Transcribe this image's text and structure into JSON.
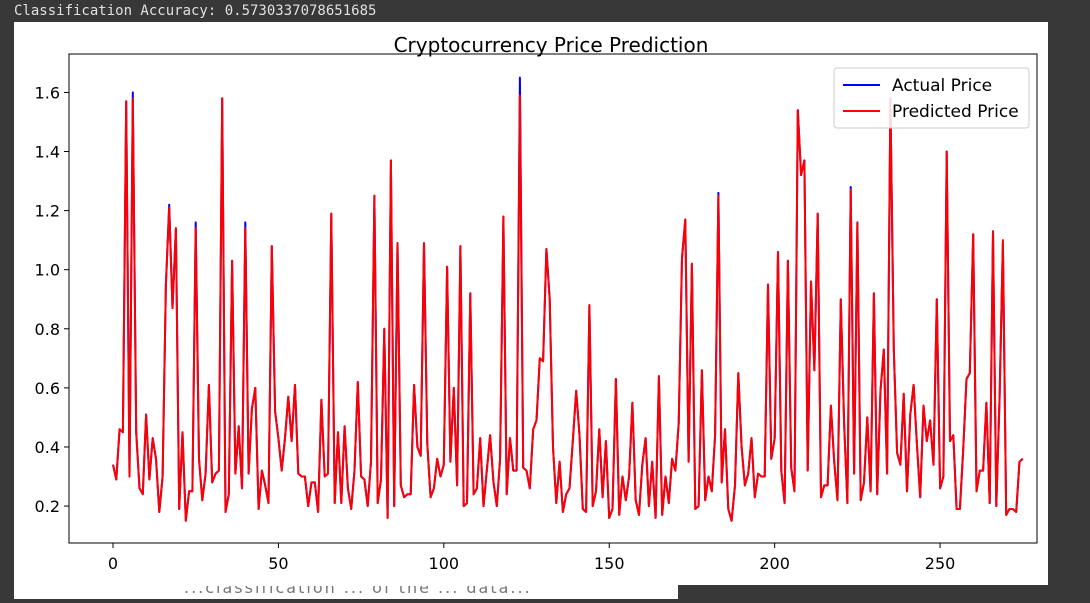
{
  "output": {
    "accuracy_text": "Classification Accuracy: 0.5730337078651685",
    "cut_off_text": "...classification ... of the ... data..."
  },
  "chart_data": {
    "type": "line",
    "title": "Cryptocurrency Price Prediction",
    "xlabel": "",
    "ylabel": "",
    "xlim": [
      -13.3,
      279.3
    ],
    "ylim": [
      0.075,
      1.73
    ],
    "xticks": [
      0,
      50,
      100,
      150,
      200,
      250
    ],
    "yticks": [
      0.2,
      0.4,
      0.6,
      0.8,
      1.0,
      1.2,
      1.4,
      1.6
    ],
    "xtick_labels": [
      "0",
      "50",
      "100",
      "150",
      "200",
      "250"
    ],
    "ytick_labels": [
      "0.2",
      "0.4",
      "0.6",
      "0.8",
      "1.0",
      "1.2",
      "1.4",
      "1.6"
    ],
    "grid": false,
    "legend": "top-right",
    "series": [
      {
        "name": "Actual Price",
        "color": "#0000ff",
        "x_start": 0,
        "values": [
          0.34,
          0.29,
          0.46,
          0.45,
          1.57,
          0.3,
          1.6,
          0.45,
          0.26,
          0.24,
          0.51,
          0.29,
          0.43,
          0.36,
          0.18,
          0.3,
          0.95,
          1.22,
          0.87,
          1.14,
          0.19,
          0.45,
          0.15,
          0.25,
          0.25,
          1.16,
          0.36,
          0.22,
          0.31,
          0.61,
          0.28,
          0.31,
          0.32,
          1.58,
          0.18,
          0.24,
          1.03,
          0.31,
          0.47,
          0.26,
          1.16,
          0.31,
          0.53,
          0.6,
          0.19,
          0.32,
          0.27,
          0.21,
          1.08,
          0.52,
          0.43,
          0.32,
          0.43,
          0.57,
          0.42,
          0.61,
          0.31,
          0.3,
          0.3,
          0.2,
          0.28,
          0.28,
          0.18,
          0.56,
          0.3,
          0.31,
          1.19,
          0.21,
          0.45,
          0.21,
          0.47,
          0.26,
          0.19,
          0.32,
          0.62,
          0.3,
          0.29,
          0.2,
          0.35,
          1.25,
          0.21,
          0.29,
          0.8,
          0.16,
          1.37,
          0.2,
          1.09,
          0.27,
          0.23,
          0.24,
          0.24,
          0.61,
          0.4,
          0.37,
          1.09,
          0.41,
          0.23,
          0.26,
          0.36,
          0.3,
          0.34,
          1.01,
          0.35,
          0.6,
          0.27,
          1.08,
          0.2,
          0.21,
          0.92,
          0.24,
          0.26,
          0.43,
          0.2,
          0.32,
          0.44,
          0.28,
          0.2,
          0.36,
          1.18,
          0.24,
          0.43,
          0.32,
          0.32,
          1.65,
          0.33,
          0.32,
          0.26,
          0.46,
          0.49,
          0.7,
          0.69,
          1.07,
          0.9,
          0.4,
          0.21,
          0.35,
          0.18,
          0.24,
          0.26,
          0.42,
          0.59,
          0.44,
          0.19,
          0.18,
          0.88,
          0.2,
          0.25,
          0.46,
          0.23,
          0.42,
          0.16,
          0.19,
          0.63,
          0.17,
          0.3,
          0.22,
          0.3,
          0.55,
          0.22,
          0.17,
          0.34,
          0.43,
          0.2,
          0.35,
          0.16,
          0.64,
          0.17,
          0.3,
          0.21,
          0.36,
          0.32,
          0.48,
          1.04,
          1.17,
          0.35,
          1.02,
          0.19,
          0.2,
          0.66,
          0.22,
          0.3,
          0.25,
          0.44,
          1.26,
          0.28,
          0.46,
          0.19,
          0.15,
          0.27,
          0.65,
          0.4,
          0.27,
          0.31,
          0.43,
          0.23,
          0.31,
          0.3,
          0.3,
          0.95,
          0.36,
          0.43,
          1.06,
          0.32,
          0.21,
          1.03,
          0.33,
          0.25,
          1.54,
          1.32,
          1.37,
          0.32,
          0.96,
          0.66,
          1.19,
          0.23,
          0.27,
          0.27,
          0.54,
          0.35,
          0.22,
          0.9,
          0.48,
          0.21,
          1.28,
          0.31,
          1.16,
          0.22,
          0.28,
          0.5,
          0.25,
          0.92,
          0.24,
          0.59,
          0.73,
          0.31,
          1.58,
          0.73,
          0.38,
          0.34,
          0.58,
          0.25,
          0.51,
          0.61,
          0.41,
          0.23,
          0.54,
          0.42,
          0.49,
          0.34,
          0.9,
          0.26,
          0.3,
          1.4,
          0.42,
          0.44,
          0.19,
          0.19,
          0.39,
          0.63,
          0.65,
          1.12,
          0.25,
          0.32,
          0.32,
          0.55,
          0.21,
          1.13,
          0.2,
          0.57,
          1.09,
          0.17,
          0.19,
          0.19,
          0.18,
          0.35,
          0.36
        ]
      },
      {
        "name": "Predicted Price",
        "color": "#ff0000",
        "x_start": 0,
        "values": [
          0.34,
          0.29,
          0.46,
          0.45,
          1.57,
          0.3,
          1.58,
          0.45,
          0.26,
          0.24,
          0.51,
          0.29,
          0.43,
          0.36,
          0.18,
          0.3,
          0.95,
          1.21,
          0.87,
          1.14,
          0.19,
          0.45,
          0.15,
          0.25,
          0.25,
          1.14,
          0.36,
          0.22,
          0.31,
          0.61,
          0.28,
          0.31,
          0.32,
          1.58,
          0.18,
          0.24,
          1.03,
          0.31,
          0.47,
          0.26,
          1.14,
          0.31,
          0.53,
          0.6,
          0.19,
          0.32,
          0.27,
          0.21,
          1.08,
          0.52,
          0.43,
          0.32,
          0.43,
          0.57,
          0.42,
          0.61,
          0.31,
          0.3,
          0.3,
          0.2,
          0.28,
          0.28,
          0.18,
          0.56,
          0.3,
          0.31,
          1.19,
          0.21,
          0.45,
          0.21,
          0.47,
          0.26,
          0.19,
          0.32,
          0.62,
          0.3,
          0.29,
          0.2,
          0.35,
          1.25,
          0.21,
          0.29,
          0.8,
          0.16,
          1.37,
          0.2,
          1.09,
          0.27,
          0.23,
          0.24,
          0.24,
          0.61,
          0.4,
          0.37,
          1.09,
          0.41,
          0.23,
          0.26,
          0.36,
          0.3,
          0.34,
          1.01,
          0.35,
          0.6,
          0.27,
          1.08,
          0.2,
          0.21,
          0.92,
          0.24,
          0.26,
          0.43,
          0.2,
          0.32,
          0.44,
          0.28,
          0.2,
          0.36,
          1.18,
          0.24,
          0.43,
          0.32,
          0.32,
          1.59,
          0.33,
          0.32,
          0.26,
          0.46,
          0.49,
          0.7,
          0.69,
          1.07,
          0.9,
          0.4,
          0.21,
          0.35,
          0.18,
          0.24,
          0.26,
          0.42,
          0.59,
          0.44,
          0.19,
          0.18,
          0.88,
          0.2,
          0.25,
          0.46,
          0.23,
          0.42,
          0.16,
          0.19,
          0.63,
          0.17,
          0.3,
          0.22,
          0.3,
          0.55,
          0.22,
          0.17,
          0.34,
          0.43,
          0.2,
          0.35,
          0.16,
          0.64,
          0.17,
          0.3,
          0.21,
          0.36,
          0.32,
          0.48,
          1.04,
          1.17,
          0.35,
          1.02,
          0.19,
          0.2,
          0.66,
          0.22,
          0.3,
          0.25,
          0.44,
          1.25,
          0.28,
          0.46,
          0.19,
          0.15,
          0.27,
          0.65,
          0.4,
          0.27,
          0.31,
          0.43,
          0.23,
          0.31,
          0.3,
          0.3,
          0.95,
          0.36,
          0.43,
          1.06,
          0.32,
          0.21,
          1.03,
          0.33,
          0.25,
          1.54,
          1.32,
          1.37,
          0.32,
          0.96,
          0.66,
          1.19,
          0.23,
          0.27,
          0.27,
          0.54,
          0.35,
          0.22,
          0.9,
          0.48,
          0.21,
          1.27,
          0.31,
          1.16,
          0.22,
          0.28,
          0.5,
          0.25,
          0.92,
          0.24,
          0.59,
          0.73,
          0.31,
          1.58,
          0.73,
          0.38,
          0.34,
          0.58,
          0.25,
          0.51,
          0.61,
          0.41,
          0.23,
          0.54,
          0.42,
          0.49,
          0.34,
          0.9,
          0.26,
          0.3,
          1.4,
          0.42,
          0.44,
          0.19,
          0.19,
          0.39,
          0.63,
          0.65,
          1.12,
          0.25,
          0.32,
          0.32,
          0.55,
          0.21,
          1.13,
          0.2,
          0.57,
          1.1,
          0.17,
          0.19,
          0.19,
          0.18,
          0.35,
          0.36
        ]
      }
    ]
  }
}
